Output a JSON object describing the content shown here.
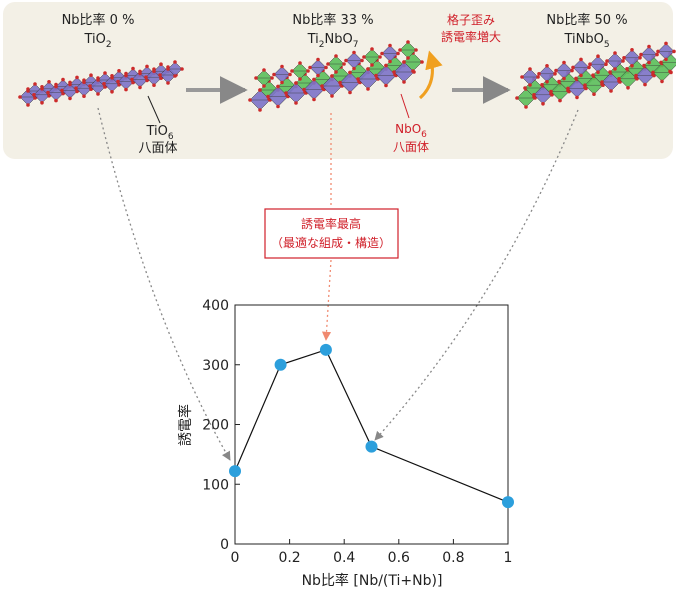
{
  "structures": [
    {
      "name_line1": "Nb比率 0 %",
      "formula_base": "TiO",
      "formula_sub": "2",
      "formula_after": ""
    },
    {
      "name_line1": "Nb比率 33 %",
      "formula_base": "Ti",
      "formula_sub": "2",
      "formula_after": "NbO",
      "formula_sub2": "7"
    },
    {
      "name_line1": "Nb比率 50 %",
      "formula_base": "TiNbO",
      "formula_sub": "5",
      "formula_after": ""
    }
  ],
  "annotations": {
    "tio6_base": "TiO",
    "tio6_sub": "6",
    "tio6_line2": "八面体",
    "nbo6_base": "NbO",
    "nbo6_sub": "6",
    "nbo6_line2": "八面体",
    "strain_line1": "格子歪み",
    "strain_line2": "誘電率増大",
    "best_line1": "誘電率最高",
    "best_line2": "（最適な組成・構造）"
  },
  "colors": {
    "panel_bg": "#f3f0e6",
    "ti_octahedra": "#7c72c8",
    "nb_octahedra": "#5bbf5b",
    "oxygen": "#cc2b2b",
    "point": "#2c9fdc",
    "red_text": "#d0202a",
    "strain_arrow": "#f0a020",
    "gray_arrow": "#999999",
    "pink_arrow": "#f08a70"
  },
  "chart_data": {
    "type": "line",
    "x": [
      0,
      0.167,
      0.333,
      0.5,
      1.0
    ],
    "y": [
      122,
      300,
      325,
      163,
      70
    ],
    "xlim": [
      0,
      1
    ],
    "ylim": [
      0,
      400
    ],
    "xticks": [
      "0",
      "0.2",
      "0.4",
      "0.6",
      "0.8",
      "1"
    ],
    "yticks": [
      "0",
      "100",
      "200",
      "300",
      "400"
    ],
    "xlabel": "Nb比率 [Nb/(Ti+Nb)]",
    "ylabel": "誘電率",
    "grid": false
  }
}
